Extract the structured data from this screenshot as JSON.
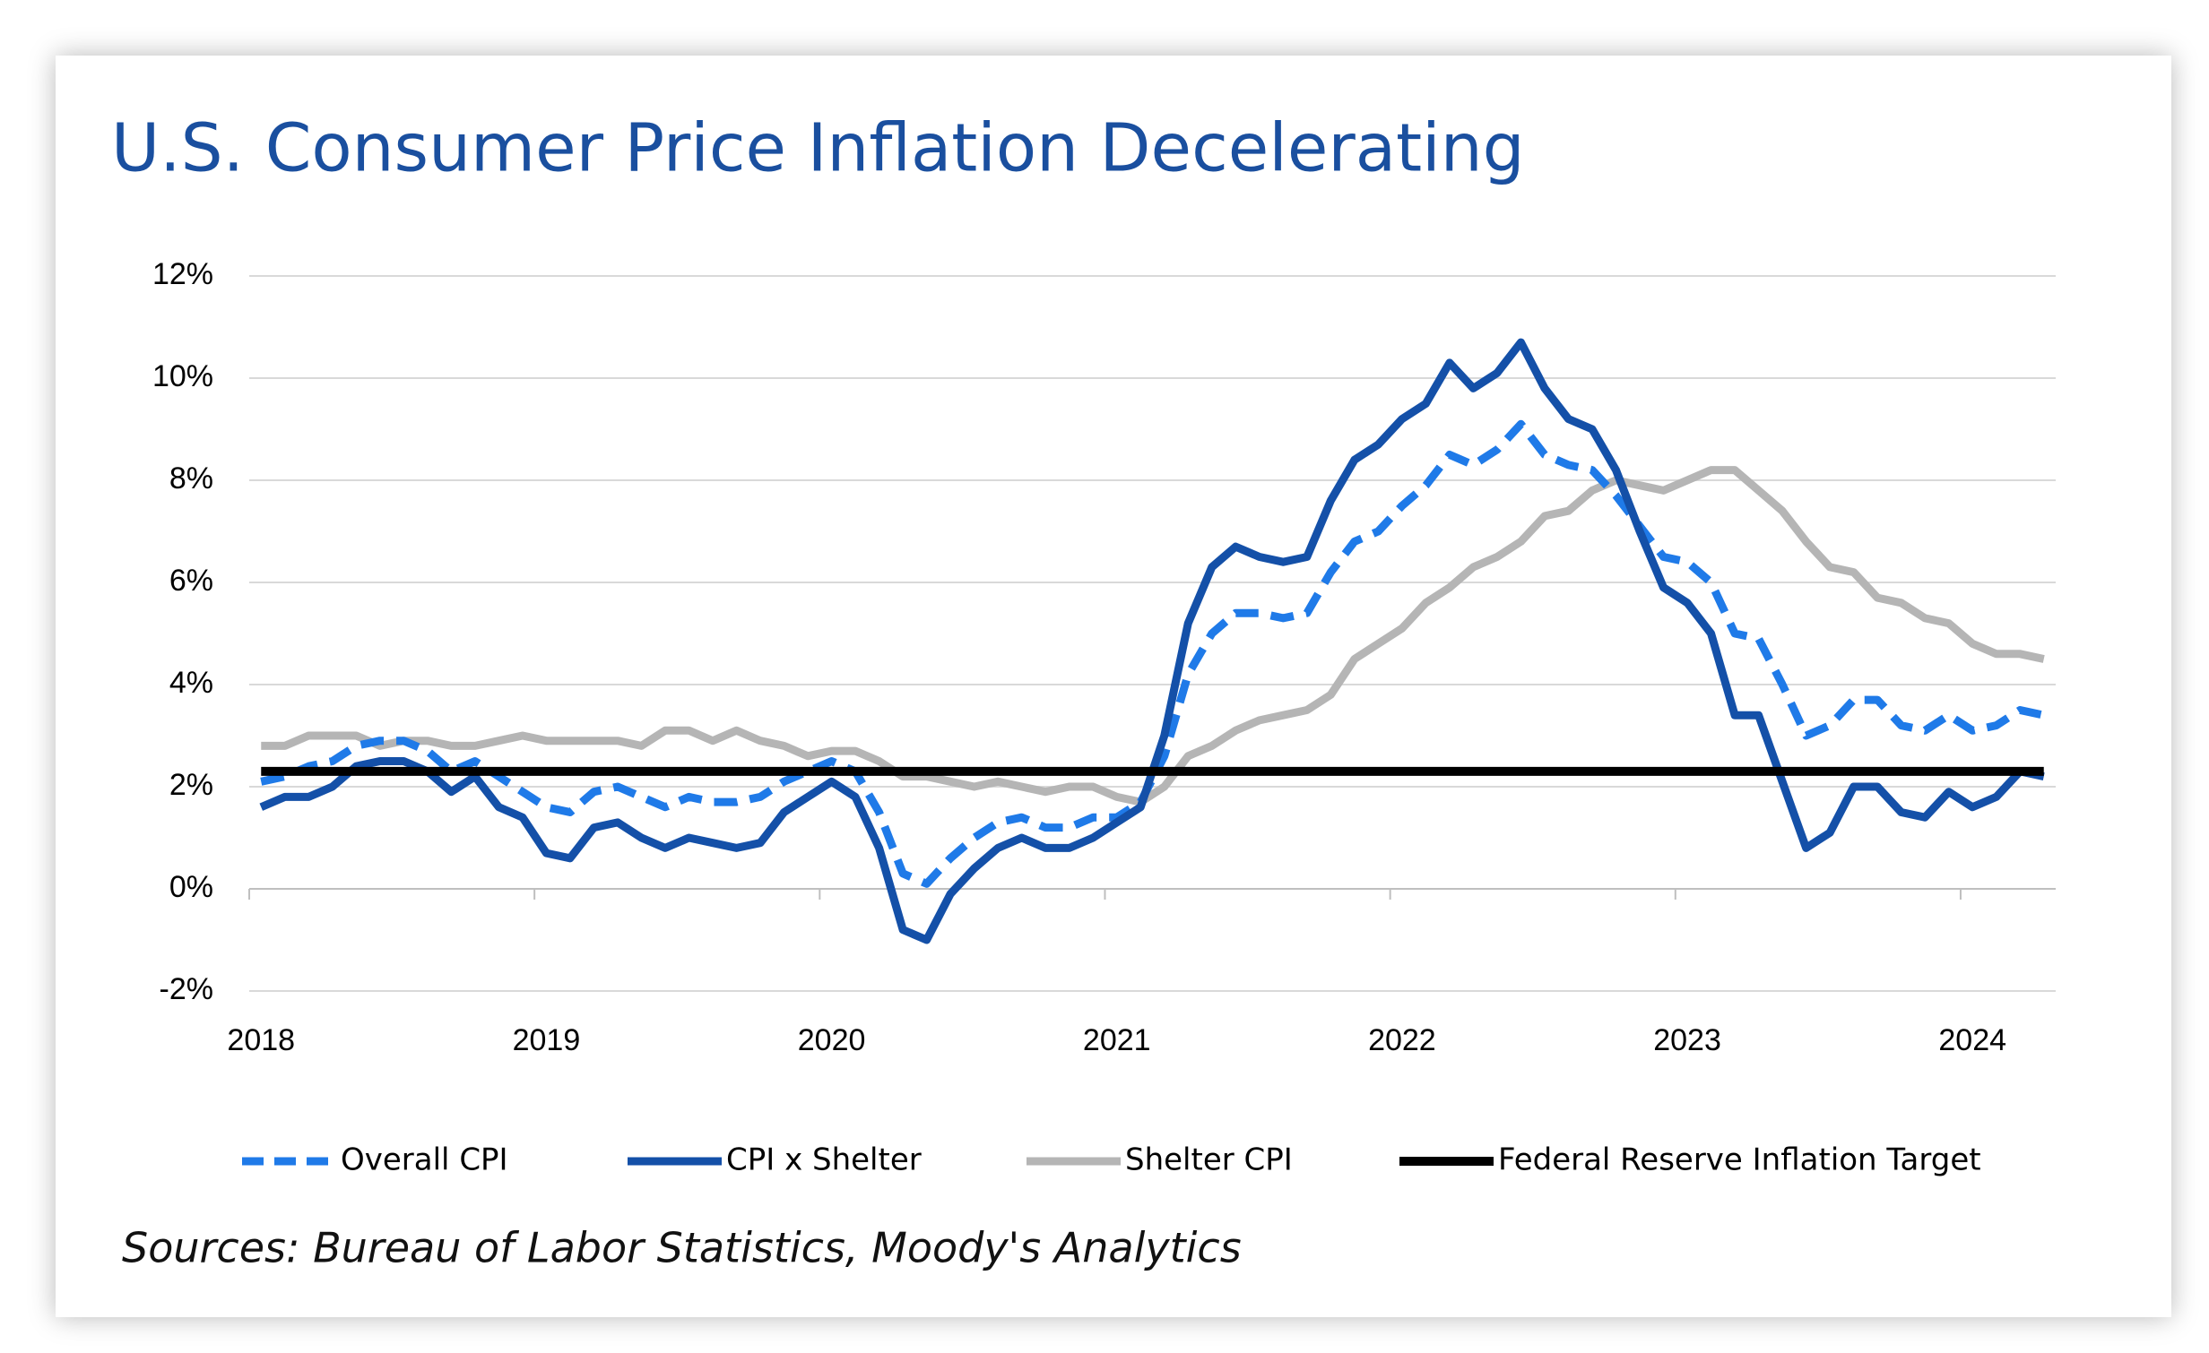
{
  "chart_data": {
    "type": "line",
    "title": "U.S. Consumer Price Inflation Decelerating",
    "source": "Sources: Bureau of Labor Statistics, Moody's Analytics",
    "categories": [
      "2018",
      null,
      null,
      null,
      null,
      null,
      null,
      null,
      null,
      null,
      null,
      null,
      "2019",
      null,
      null,
      null,
      null,
      null,
      null,
      null,
      null,
      null,
      null,
      null,
      "2020",
      null,
      null,
      null,
      null,
      null,
      null,
      null,
      null,
      null,
      null,
      null,
      "2021",
      null,
      null,
      null,
      null,
      null,
      null,
      null,
      null,
      null,
      null,
      null,
      "2022",
      null,
      null,
      null,
      null,
      null,
      null,
      null,
      null,
      null,
      null,
      null,
      "2023",
      null,
      null,
      null,
      null,
      null,
      null,
      null,
      null,
      null,
      null,
      null,
      "2024",
      null,
      null,
      null
    ],
    "ylim": [
      -2,
      12
    ],
    "yticks": [
      {
        "value": -2,
        "label": "-2%"
      },
      {
        "value": 0,
        "label": "0%"
      },
      {
        "value": 2,
        "label": "2%"
      },
      {
        "value": 4,
        "label": "4%"
      },
      {
        "value": 6,
        "label": "6%"
      },
      {
        "value": 8,
        "label": "8%"
      },
      {
        "value": 10,
        "label": "10%"
      },
      {
        "value": 12,
        "label": "12%"
      }
    ],
    "grid": true,
    "series": [
      {
        "name": "Overall CPI",
        "color": "#1f7ae8",
        "dash": true,
        "values": [
          2.1,
          2.2,
          2.4,
          2.5,
          2.8,
          2.9,
          2.9,
          2.7,
          2.3,
          2.5,
          2.2,
          1.9,
          1.6,
          1.5,
          1.9,
          2.0,
          1.8,
          1.6,
          1.8,
          1.7,
          1.7,
          1.8,
          2.1,
          2.3,
          2.5,
          2.3,
          1.5,
          0.3,
          0.1,
          0.6,
          1.0,
          1.3,
          1.4,
          1.2,
          1.2,
          1.4,
          1.4,
          1.7,
          2.6,
          4.2,
          5.0,
          5.4,
          5.4,
          5.3,
          5.4,
          6.2,
          6.8,
          7.0,
          7.5,
          7.9,
          8.5,
          8.3,
          8.6,
          9.1,
          8.5,
          8.3,
          8.2,
          7.7,
          7.1,
          6.5,
          6.4,
          6.0,
          5.0,
          4.9,
          4.0,
          3.0,
          3.2,
          3.7,
          3.7,
          3.2,
          3.1,
          3.4,
          3.1,
          3.2,
          3.5,
          3.4
        ]
      },
      {
        "name": "CPI x Shelter",
        "color": "#1450a8",
        "dash": false,
        "values": [
          1.6,
          1.8,
          1.8,
          2.0,
          2.4,
          2.5,
          2.5,
          2.3,
          1.9,
          2.2,
          1.6,
          1.4,
          0.7,
          0.6,
          1.2,
          1.3,
          1.0,
          0.8,
          1.0,
          0.9,
          0.8,
          0.9,
          1.5,
          1.8,
          2.1,
          1.8,
          0.8,
          -0.8,
          -1.0,
          -0.1,
          0.4,
          0.8,
          1.0,
          0.8,
          0.8,
          1.0,
          1.3,
          1.6,
          3.0,
          5.2,
          6.3,
          6.7,
          6.5,
          6.4,
          6.5,
          7.6,
          8.4,
          8.7,
          9.2,
          9.5,
          10.3,
          9.8,
          10.1,
          10.7,
          9.8,
          9.2,
          9.0,
          8.2,
          7.0,
          5.9,
          5.6,
          5.0,
          3.4,
          3.4,
          2.1,
          0.8,
          1.1,
          2.0,
          2.0,
          1.5,
          1.4,
          1.9,
          1.6,
          1.8,
          2.3,
          2.2
        ]
      },
      {
        "name": "Shelter CPI",
        "color": "#b5b5b5",
        "dash": false,
        "values": [
          2.8,
          2.8,
          3.0,
          3.0,
          3.0,
          2.8,
          2.9,
          2.9,
          2.8,
          2.8,
          2.9,
          3.0,
          2.9,
          2.9,
          2.9,
          2.9,
          2.8,
          3.1,
          3.1,
          2.9,
          3.1,
          2.9,
          2.8,
          2.6,
          2.7,
          2.7,
          2.5,
          2.2,
          2.2,
          2.1,
          2.0,
          2.1,
          2.0,
          1.9,
          2.0,
          2.0,
          1.8,
          1.7,
          2.0,
          2.6,
          2.8,
          3.1,
          3.3,
          3.4,
          3.5,
          3.8,
          4.5,
          4.8,
          5.1,
          5.6,
          5.9,
          6.3,
          6.5,
          6.8,
          7.3,
          7.4,
          7.8,
          8.0,
          7.9,
          7.8,
          8.0,
          8.2,
          8.2,
          7.8,
          7.4,
          6.8,
          6.3,
          6.2,
          5.7,
          5.6,
          5.3,
          5.2,
          4.8,
          4.6,
          4.6,
          4.5
        ]
      },
      {
        "name": "Federal Reserve Inflation Target",
        "color": "#000000",
        "dash": false,
        "values": [
          2.3,
          2.3,
          2.3,
          2.3,
          2.3,
          2.3,
          2.3,
          2.3,
          2.3,
          2.3,
          2.3,
          2.3,
          2.3,
          2.3,
          2.3,
          2.3,
          2.3,
          2.3,
          2.3,
          2.3,
          2.3,
          2.3,
          2.3,
          2.3,
          2.3,
          2.3,
          2.3,
          2.3,
          2.3,
          2.3,
          2.3,
          2.3,
          2.3,
          2.3,
          2.3,
          2.3,
          2.3,
          2.3,
          2.3,
          2.3,
          2.3,
          2.3,
          2.3,
          2.3,
          2.3,
          2.3,
          2.3,
          2.3,
          2.3,
          2.3,
          2.3,
          2.3,
          2.3,
          2.3,
          2.3,
          2.3,
          2.3,
          2.3,
          2.3,
          2.3,
          2.3,
          2.3,
          2.3,
          2.3,
          2.3,
          2.3,
          2.3,
          2.3,
          2.3,
          2.3,
          2.3,
          2.3,
          2.3,
          2.3,
          2.3,
          2.3
        ]
      }
    ]
  }
}
